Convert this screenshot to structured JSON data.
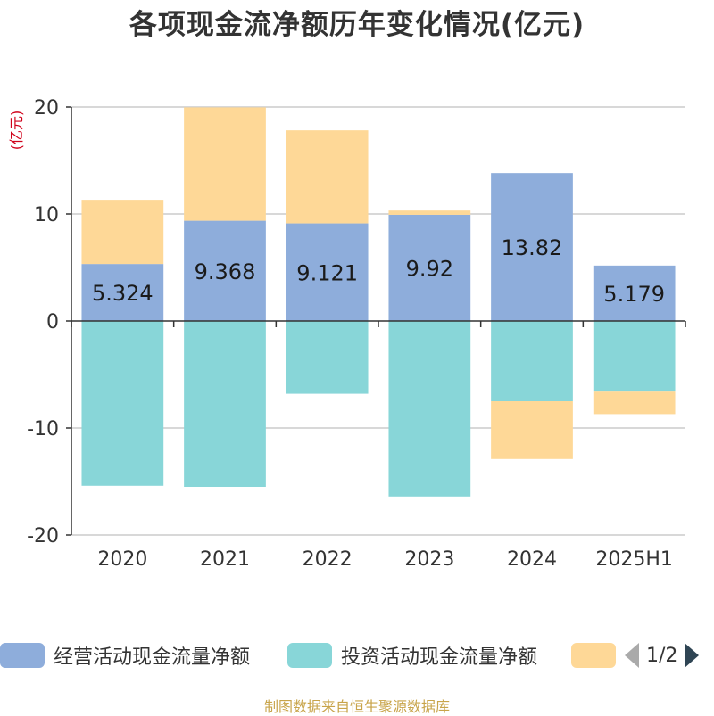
{
  "chart_data": {
    "type": "bar",
    "stacked": true,
    "title": "各项现金流净额历年变化情况(亿元)",
    "ylabel": "(亿元)",
    "xlabel": "",
    "categories": [
      "2020",
      "2021",
      "2022",
      "2023",
      "2024",
      "2025H1"
    ],
    "ylim": [
      -20,
      20
    ],
    "yticks": [
      -20,
      -10,
      0,
      10,
      20
    ],
    "grid": true,
    "legend_position": "bottom",
    "series": [
      {
        "name": "经营活动现金流量净额",
        "color": "#8eaddb",
        "values": [
          5.324,
          9.368,
          9.121,
          9.92,
          13.82,
          5.179
        ],
        "labels": [
          "5.324",
          "9.368",
          "9.121",
          "9.92",
          "13.82",
          "5.179"
        ]
      },
      {
        "name": "投资活动现金流量净额",
        "color": "#88d6d8",
        "values": [
          -15.4,
          -15.5,
          -6.8,
          -16.4,
          -7.5,
          -6.6
        ]
      },
      {
        "name": "",
        "color": "#fed897",
        "values": [
          6.0,
          10.6,
          8.7,
          0.4,
          -5.4,
          -2.1
        ]
      }
    ]
  },
  "legend": {
    "page": "1/2"
  },
  "source": "制图数据来自恒生聚源数据库"
}
